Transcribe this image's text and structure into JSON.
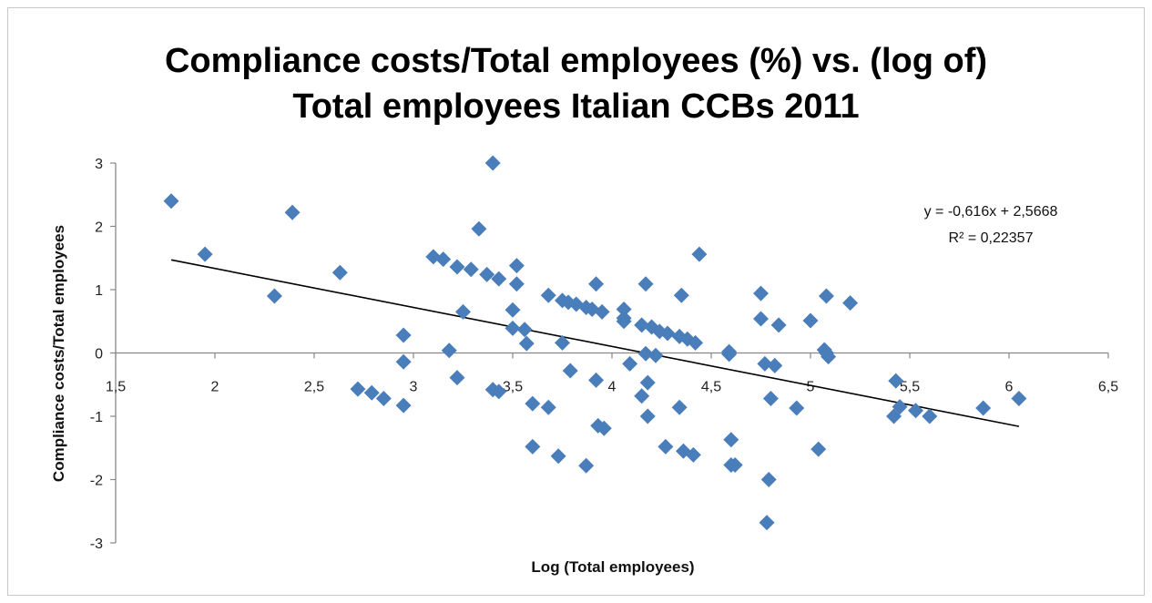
{
  "chart_data": {
    "type": "scatter",
    "title_line1": "Compliance costs/Total employees (%) vs. (log of)",
    "title_line2": "Total employees Italian CCBs 2011",
    "xlabel": "Log (Total employees)",
    "ylabel": "Compliance costs/Total employees",
    "xlim": [
      1.5,
      6.5
    ],
    "ylim": [
      -3,
      3
    ],
    "x_ticks": [
      "1,5",
      "2",
      "2,5",
      "3",
      "3,5",
      "4",
      "4,5",
      "5",
      "5,5",
      "6",
      "6,5"
    ],
    "y_ticks": [
      "3",
      "2",
      "1",
      "0",
      "-1",
      "-2",
      "-3"
    ],
    "grid": false,
    "marker_color": "#4a7ebb",
    "trendline": {
      "equation": "y = -0,616x + 2,5668",
      "r_squared": "R² = 0,22357",
      "slope": -0.616,
      "intercept": 2.5668,
      "x_range": [
        1.78,
        6.05
      ]
    },
    "points": [
      [
        1.78,
        2.4
      ],
      [
        1.95,
        1.56
      ],
      [
        2.3,
        0.9
      ],
      [
        2.39,
        2.22
      ],
      [
        2.63,
        1.27
      ],
      [
        2.72,
        -0.57
      ],
      [
        2.79,
        -0.63
      ],
      [
        2.85,
        -0.72
      ],
      [
        2.95,
        0.28
      ],
      [
        2.95,
        -0.14
      ],
      [
        2.95,
        -0.83
      ],
      [
        3.1,
        1.52
      ],
      [
        3.15,
        1.48
      ],
      [
        3.18,
        0.04
      ],
      [
        3.22,
        1.36
      ],
      [
        3.22,
        -0.39
      ],
      [
        3.25,
        0.65
      ],
      [
        3.29,
        1.32
      ],
      [
        3.33,
        1.96
      ],
      [
        3.37,
        1.24
      ],
      [
        3.4,
        3.0
      ],
      [
        3.4,
        -0.58
      ],
      [
        3.43,
        1.17
      ],
      [
        3.43,
        -0.61
      ],
      [
        3.5,
        0.68
      ],
      [
        3.5,
        0.39
      ],
      [
        3.52,
        1.09
      ],
      [
        3.52,
        1.38
      ],
      [
        3.56,
        0.37
      ],
      [
        3.57,
        0.15
      ],
      [
        3.6,
        -0.8
      ],
      [
        3.6,
        -1.48
      ],
      [
        3.68,
        0.91
      ],
      [
        3.68,
        -0.86
      ],
      [
        3.73,
        -1.63
      ],
      [
        3.75,
        0.83
      ],
      [
        3.75,
        0.16
      ],
      [
        3.78,
        0.8
      ],
      [
        3.79,
        -0.28
      ],
      [
        3.82,
        0.77
      ],
      [
        3.87,
        0.72
      ],
      [
        3.87,
        -1.78
      ],
      [
        3.9,
        0.69
      ],
      [
        3.92,
        1.09
      ],
      [
        3.92,
        -0.43
      ],
      [
        3.93,
        -1.15
      ],
      [
        3.95,
        0.65
      ],
      [
        3.96,
        -1.19
      ],
      [
        4.06,
        0.69
      ],
      [
        4.06,
        0.55
      ],
      [
        4.06,
        0.5
      ],
      [
        4.09,
        -0.17
      ],
      [
        4.15,
        -0.68
      ],
      [
        4.15,
        0.44
      ],
      [
        4.17,
        1.09
      ],
      [
        4.17,
        -0.01
      ],
      [
        4.18,
        -0.47
      ],
      [
        4.18,
        -1.0
      ],
      [
        4.2,
        0.41
      ],
      [
        4.22,
        -0.04
      ],
      [
        4.24,
        0.34
      ],
      [
        4.27,
        -1.48
      ],
      [
        4.28,
        0.31
      ],
      [
        4.34,
        0.26
      ],
      [
        4.34,
        -0.86
      ],
      [
        4.35,
        0.91
      ],
      [
        4.36,
        -1.55
      ],
      [
        4.38,
        0.22
      ],
      [
        4.41,
        -1.61
      ],
      [
        4.42,
        0.16
      ],
      [
        4.44,
        1.56
      ],
      [
        4.59,
        -0.02
      ],
      [
        4.59,
        0.02
      ],
      [
        4.6,
        -1.37
      ],
      [
        4.6,
        -1.77
      ],
      [
        4.62,
        -1.77
      ],
      [
        4.75,
        0.94
      ],
      [
        4.75,
        0.54
      ],
      [
        4.77,
        -0.17
      ],
      [
        4.78,
        -2.68
      ],
      [
        4.79,
        -2.0
      ],
      [
        4.8,
        -0.72
      ],
      [
        4.82,
        -0.2
      ],
      [
        4.84,
        0.44
      ],
      [
        4.93,
        -0.87
      ],
      [
        5.0,
        0.51
      ],
      [
        5.04,
        -1.52
      ],
      [
        5.07,
        0.05
      ],
      [
        5.08,
        0.9
      ],
      [
        5.08,
        0.0
      ],
      [
        5.09,
        -0.06
      ],
      [
        5.2,
        0.79
      ],
      [
        5.42,
        -1.0
      ],
      [
        5.43,
        -0.44
      ],
      [
        5.45,
        -0.85
      ],
      [
        5.53,
        -0.91
      ],
      [
        5.6,
        -1.0
      ],
      [
        5.87,
        -0.87
      ],
      [
        6.05,
        -0.72
      ]
    ]
  }
}
